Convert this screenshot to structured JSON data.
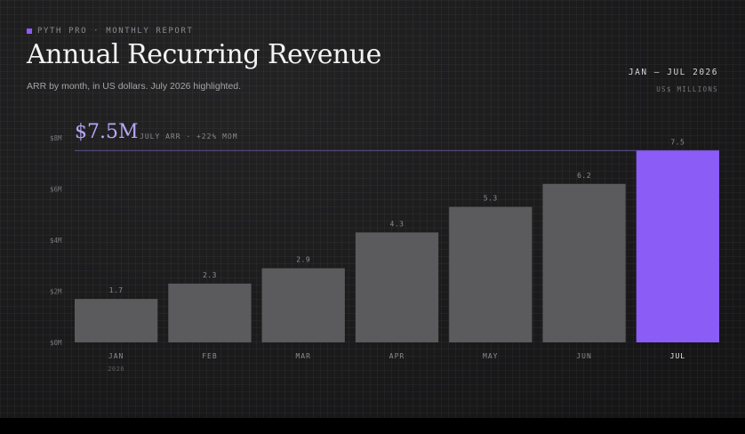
{
  "header": {
    "eyebrow": "PYTH PRO · MONTHLY REPORT",
    "title": "Annual Recurring Revenue",
    "subtitle": "ARR by month, in US dollars. July 2026 highlighted.",
    "range": "JAN – JUL 2026",
    "units": "US$ MILLIONS"
  },
  "kpi": {
    "value": "$7.5M",
    "caption": "JULY ARR · +22% MOM"
  },
  "colors": {
    "bar": "#5b5b5e",
    "highlight": "#8b5cf6",
    "accent_text": "#b8a5f7",
    "reference_line": "#5b4a8a"
  },
  "chart_data": {
    "type": "bar",
    "title": "Annual Recurring Revenue",
    "subtitle": "ARR by month, in US dollars. July 2026 highlighted.",
    "xlabel": "",
    "ylabel": "",
    "categories": [
      "JAN",
      "FEB",
      "MAR",
      "APR",
      "MAY",
      "JUN",
      "JUL"
    ],
    "category_sublabels": [
      "2026",
      "",
      "",
      "",
      "",
      "",
      ""
    ],
    "values": [
      1.7,
      2.3,
      2.9,
      4.3,
      5.3,
      6.2,
      7.5
    ],
    "value_labels": [
      "1.7",
      "2.3",
      "2.9",
      "4.3",
      "5.3",
      "6.2",
      "7.5"
    ],
    "highlight_index": 6,
    "ylim": [
      0,
      8
    ],
    "yticks": [
      0,
      2,
      4,
      6,
      8
    ],
    "ytick_labels": [
      "$0M",
      "$2M",
      "$4M",
      "$6M",
      "$8M"
    ],
    "reference_line": 7.5,
    "grid": false,
    "legend": "none"
  }
}
